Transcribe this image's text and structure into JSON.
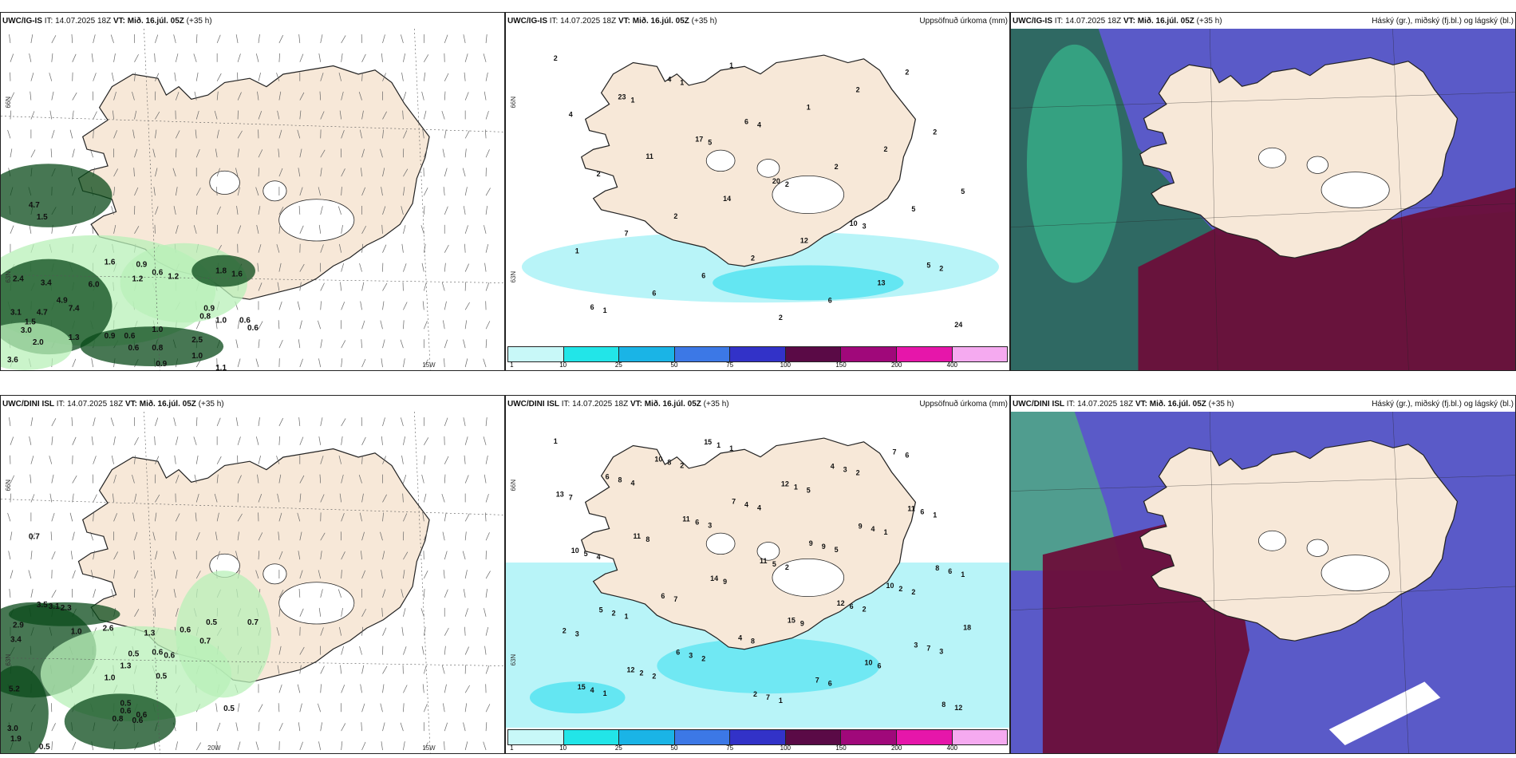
{
  "panels": [
    {
      "id": "wind-top",
      "model": "UWC/IG-IS",
      "it_label": "IT:",
      "it_value": "14.07.2025 18Z",
      "vt_label": "VT:",
      "vt_value": "Mið. 16.júl. 05Z",
      "lead": "(+35 h)",
      "title_right": "",
      "coords": [
        "66N",
        "63N",
        "15W"
      ],
      "labels": [
        "4.7",
        "1.5",
        "1.6",
        "0.9",
        "0.6",
        "1.2",
        "1.2",
        "2.4",
        "3.4",
        "6.0",
        "4.9",
        "7.4",
        "3.1",
        "4.7",
        "1.5",
        "3.0",
        "2.0",
        "1.3",
        "0.9",
        "0.6",
        "1.0",
        "0.6",
        "0.8",
        "2.5",
        "3.6",
        "0.9",
        "0.8",
        "1.0",
        "0.6",
        "1.0",
        "1.1",
        "0.9",
        "1.8",
        "1.6",
        "0.6"
      ]
    },
    {
      "id": "precip-top",
      "model": "UWC/IG-IS",
      "it_label": "IT:",
      "it_value": "14.07.2025 18Z",
      "vt_label": "VT:",
      "vt_value": "Mið. 16.júl. 05Z",
      "lead": "(+35 h)",
      "title_right": "Uppsöfnuð úrkoma (mm)",
      "coords": [
        "66N",
        "63N"
      ],
      "labels": [
        "2",
        "1",
        "5",
        "2",
        "3",
        "2",
        "1",
        "1",
        "4",
        "2",
        "5",
        "1",
        "6",
        "1",
        "1",
        "2",
        "5",
        "7",
        "6",
        "2",
        "2",
        "2",
        "2",
        "2",
        "2",
        "6",
        "2",
        "4",
        "11",
        "14",
        "12",
        "13",
        "24",
        "23",
        "17",
        "20",
        "10",
        "5",
        "6",
        "4",
        "6"
      ]
    },
    {
      "id": "cloud-top",
      "model": "UWC/IG-IS",
      "it_label": "IT:",
      "it_value": "14.07.2025 18Z",
      "vt_label": "VT:",
      "vt_value": "Mið. 16.júl. 05Z",
      "lead": "(+35 h)",
      "title_right": "Háský (gr.), miðský (fj.bl.) og lágský (bl.)",
      "coords": [],
      "labels": []
    },
    {
      "id": "wind-bottom",
      "model": "UWC/DINI ISL",
      "it_label": "IT:",
      "it_value": "14.07.2025 18Z",
      "vt_label": "VT:",
      "vt_value": "Mið. 16.júl. 05Z",
      "lead": "(+35 h)",
      "title_right": "",
      "coords": [
        "66N",
        "63N",
        "20W",
        "15W"
      ],
      "labels": [
        "0.7",
        "3.5",
        "3.1",
        "2.3",
        "2.9",
        "3.4",
        "1.0",
        "2.6",
        "1.3",
        "0.5",
        "0.7",
        "0.6",
        "0.7",
        "0.5",
        "0.6",
        "0.6",
        "1.3",
        "0.5",
        "1.0",
        "5.2",
        "0.5",
        "0.6",
        "0.6",
        "0.8",
        "0.6",
        "3.0",
        "1.9",
        "0.5",
        "0.5"
      ]
    },
    {
      "id": "precip-bottom",
      "model": "UWC/DINI ISL",
      "it_label": "IT:",
      "it_value": "14.07.2025 18Z",
      "vt_label": "VT:",
      "vt_value": "Mið. 16.júl. 05Z",
      "lead": "(+35 h)",
      "title_right": "Uppsöfnuð úrkoma (mm)",
      "coords": [
        "66N",
        "63N"
      ],
      "labels": [
        "1",
        "4",
        "3",
        "2",
        "2",
        "3",
        "1",
        "2",
        "4",
        "5",
        "2",
        "3",
        "2",
        "1",
        "5",
        "1",
        "1",
        "1",
        "2",
        "1",
        "2",
        "1",
        "4",
        "7",
        "8",
        "6",
        "6",
        "7",
        "8",
        "9",
        "9",
        "6",
        "12",
        "8",
        "6",
        "5",
        "6",
        "7",
        "4",
        "8",
        "4",
        "9",
        "2",
        "2",
        "2",
        "1",
        "1",
        "4",
        "6",
        "2",
        "3",
        "7",
        "3",
        "6",
        "5",
        "6",
        "4",
        "7",
        "7",
        "13",
        "11",
        "14",
        "15",
        "10",
        "8",
        "6",
        "11",
        "11",
        "12",
        "3",
        "15",
        "10",
        "7",
        "9",
        "10",
        "18",
        "12",
        "15",
        "12",
        "9",
        "8",
        "5",
        "6",
        "2",
        "4",
        "11",
        "10"
      ]
    },
    {
      "id": "cloud-bottom",
      "model": "UWC/DINI ISL",
      "it_label": "IT:",
      "it_value": "14.07.2025 18Z",
      "vt_label": "VT:",
      "vt_value": "Mið. 16.júl. 05Z",
      "lead": "(+35 h)",
      "title_right": "Háský (gr.), miðský (fj.bl.) og lágský (bl.)",
      "coords": [],
      "labels": []
    }
  ],
  "colorbar": {
    "ticks": [
      "1",
      "10",
      "25",
      "50",
      "75",
      "100",
      "150",
      "200",
      "400"
    ],
    "colors": [
      "#c8f8f8",
      "#22e5e8",
      "#1ab4e6",
      "#3c78e6",
      "#3232c8",
      "#5a0a46",
      "#a0087a",
      "#e616aa",
      "#f5aaf0"
    ]
  },
  "colors": {
    "land": "#f7e8d8",
    "sea": "#ffffff",
    "coast": "#222222",
    "precip_light": "#b8f4f8",
    "precip_mid": "#40e0f0",
    "wind_green_light": "#b8f0b8",
    "wind_green_dark": "#0a4a1a",
    "cloud_high": "#5a5ac8",
    "cloud_mid": "#6b0f3a",
    "cloud_low": "#2a6a58"
  }
}
